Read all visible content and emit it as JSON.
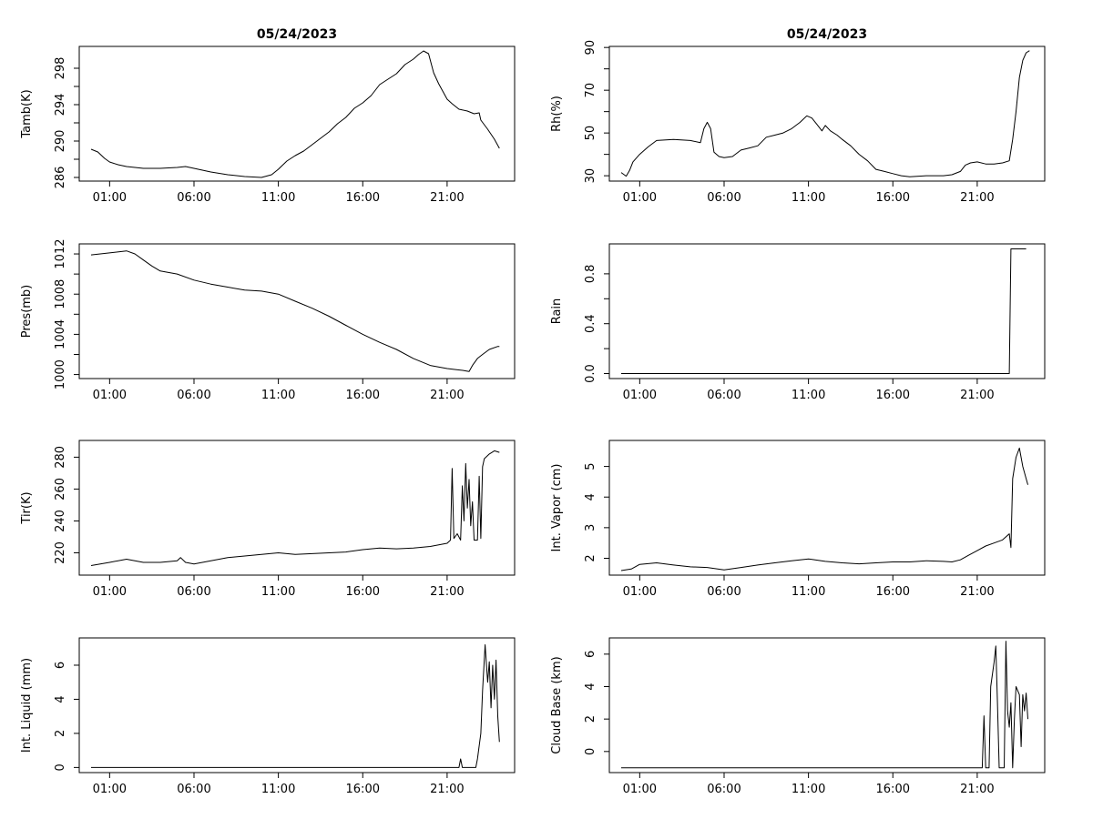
{
  "chart_data": [
    {
      "type": "line",
      "title": "05/24/2023",
      "ylabel": "Tamb(K)",
      "xlim": [
        -0.8,
        25.0
      ],
      "ylim": [
        285.6,
        300.4
      ],
      "xticks": [
        1,
        6,
        11,
        16,
        21
      ],
      "xticklabels": [
        "01:00",
        "06:00",
        "11:00",
        "16:00",
        "21:00"
      ],
      "yticks": [
        286,
        288,
        290,
        292,
        294,
        296,
        298
      ],
      "yticklabels": [
        "286",
        "",
        "290",
        "",
        "294",
        "",
        "298"
      ],
      "points": [
        [
          -0.1,
          289.1
        ],
        [
          0.3,
          288.8
        ],
        [
          0.7,
          288.1
        ],
        [
          1.0,
          287.7
        ],
        [
          1.5,
          287.4
        ],
        [
          2.0,
          287.2
        ],
        [
          3.0,
          287.0
        ],
        [
          4.0,
          287.0
        ],
        [
          5.0,
          287.1
        ],
        [
          5.5,
          287.2
        ],
        [
          6.0,
          287.0
        ],
        [
          7.0,
          286.6
        ],
        [
          8.0,
          286.3
        ],
        [
          9.0,
          286.1
        ],
        [
          10.0,
          286.0
        ],
        [
          10.6,
          286.3
        ],
        [
          11.0,
          286.9
        ],
        [
          11.5,
          287.8
        ],
        [
          12.0,
          288.4
        ],
        [
          12.5,
          288.9
        ],
        [
          13.0,
          289.6
        ],
        [
          13.5,
          290.3
        ],
        [
          14.0,
          291.0
        ],
        [
          14.5,
          291.9
        ],
        [
          15.0,
          292.6
        ],
        [
          15.5,
          293.6
        ],
        [
          16.0,
          294.2
        ],
        [
          16.5,
          295.0
        ],
        [
          17.0,
          296.2
        ],
        [
          17.5,
          296.8
        ],
        [
          18.0,
          297.4
        ],
        [
          18.5,
          298.4
        ],
        [
          19.0,
          299.0
        ],
        [
          19.3,
          299.5
        ],
        [
          19.6,
          299.9
        ],
        [
          19.9,
          299.6
        ],
        [
          20.2,
          297.5
        ],
        [
          20.5,
          296.3
        ],
        [
          21.0,
          294.6
        ],
        [
          21.3,
          294.1
        ],
        [
          21.7,
          293.5
        ],
        [
          22.2,
          293.3
        ],
        [
          22.6,
          293.0
        ],
        [
          22.9,
          293.1
        ],
        [
          23.0,
          292.3
        ],
        [
          23.4,
          291.3
        ],
        [
          23.8,
          290.2
        ],
        [
          24.1,
          289.2
        ]
      ]
    },
    {
      "type": "line",
      "title": "05/24/2023",
      "ylabel": "Rh(%)",
      "xlim": [
        -0.8,
        25.0
      ],
      "ylim": [
        27.5,
        90.5
      ],
      "xticks": [
        1,
        6,
        11,
        16,
        21
      ],
      "xticklabels": [
        "01:00",
        "06:00",
        "11:00",
        "16:00",
        "21:00"
      ],
      "yticks": [
        30,
        40,
        50,
        60,
        70,
        80,
        90
      ],
      "yticklabels": [
        "30",
        "",
        "50",
        "",
        "70",
        "",
        "90"
      ],
      "points": [
        [
          -0.1,
          31.5
        ],
        [
          0.2,
          29.8
        ],
        [
          0.4,
          32.5
        ],
        [
          0.6,
          36.5
        ],
        [
          1.0,
          40.0
        ],
        [
          1.5,
          43.5
        ],
        [
          2.0,
          46.5
        ],
        [
          3.0,
          47.0
        ],
        [
          4.0,
          46.5
        ],
        [
          4.6,
          45.5
        ],
        [
          4.8,
          52.0
        ],
        [
          5.0,
          55.0
        ],
        [
          5.2,
          52.0
        ],
        [
          5.4,
          41.0
        ],
        [
          5.7,
          39.0
        ],
        [
          6.0,
          38.5
        ],
        [
          6.5,
          39.0
        ],
        [
          7.0,
          42.0
        ],
        [
          7.5,
          43.0
        ],
        [
          8.0,
          44.0
        ],
        [
          8.5,
          48.0
        ],
        [
          9.0,
          49.0
        ],
        [
          9.5,
          50.0
        ],
        [
          10.0,
          52.0
        ],
        [
          10.5,
          55.0
        ],
        [
          10.9,
          58.0
        ],
        [
          11.2,
          57.0
        ],
        [
          11.5,
          54.0
        ],
        [
          11.8,
          51.0
        ],
        [
          12.0,
          53.5
        ],
        [
          12.3,
          51.0
        ],
        [
          12.7,
          49.0
        ],
        [
          13.0,
          47.0
        ],
        [
          13.5,
          44.0
        ],
        [
          14.0,
          40.0
        ],
        [
          14.5,
          37.0
        ],
        [
          15.0,
          33.0
        ],
        [
          15.5,
          32.0
        ],
        [
          16.0,
          31.0
        ],
        [
          16.5,
          30.0
        ],
        [
          17.0,
          29.5
        ],
        [
          18.0,
          30.0
        ],
        [
          19.0,
          30.0
        ],
        [
          19.5,
          30.5
        ],
        [
          20.0,
          32.0
        ],
        [
          20.3,
          35.0
        ],
        [
          20.6,
          36.0
        ],
        [
          21.0,
          36.5
        ],
        [
          21.5,
          35.5
        ],
        [
          22.0,
          35.5
        ],
        [
          22.5,
          36.0
        ],
        [
          22.9,
          37.0
        ],
        [
          23.1,
          47.0
        ],
        [
          23.3,
          60.0
        ],
        [
          23.5,
          76.0
        ],
        [
          23.7,
          84.0
        ],
        [
          23.9,
          87.5
        ],
        [
          24.1,
          88.5
        ]
      ]
    },
    {
      "type": "line",
      "title": "",
      "ylabel": "Pres(mb)",
      "xlim": [
        -0.8,
        25.0
      ],
      "ylim": [
        999.6,
        1013.0
      ],
      "xticks": [
        1,
        6,
        11,
        16,
        21
      ],
      "xticklabels": [
        "01:00",
        "06:00",
        "11:00",
        "16:00",
        "21:00"
      ],
      "yticks": [
        1000,
        1002,
        1004,
        1006,
        1008,
        1010,
        1012
      ],
      "yticklabels": [
        "1000",
        "",
        "1004",
        "",
        "1008",
        "",
        "1012"
      ],
      "points": [
        [
          -0.1,
          1011.9
        ],
        [
          1.0,
          1012.1
        ],
        [
          2.0,
          1012.3
        ],
        [
          2.5,
          1012.0
        ],
        [
          3.0,
          1011.4
        ],
        [
          3.5,
          1010.8
        ],
        [
          4.0,
          1010.3
        ],
        [
          5.0,
          1010.0
        ],
        [
          6.0,
          1009.4
        ],
        [
          7.0,
          1009.0
        ],
        [
          8.0,
          1008.7
        ],
        [
          9.0,
          1008.4
        ],
        [
          10.0,
          1008.3
        ],
        [
          11.0,
          1008.0
        ],
        [
          12.0,
          1007.3
        ],
        [
          13.0,
          1006.6
        ],
        [
          14.0,
          1005.8
        ],
        [
          15.0,
          1004.9
        ],
        [
          16.0,
          1004.0
        ],
        [
          17.0,
          1003.2
        ],
        [
          18.0,
          1002.5
        ],
        [
          19.0,
          1001.6
        ],
        [
          20.0,
          1000.9
        ],
        [
          21.0,
          1000.6
        ],
        [
          21.5,
          1000.5
        ],
        [
          22.0,
          1000.4
        ],
        [
          22.3,
          1000.3
        ],
        [
          22.5,
          1000.9
        ],
        [
          22.8,
          1001.6
        ],
        [
          23.1,
          1002.0
        ],
        [
          23.5,
          1002.5
        ],
        [
          24.0,
          1002.8
        ],
        [
          24.1,
          1002.8
        ]
      ]
    },
    {
      "type": "line",
      "title": "",
      "ylabel": "Rain",
      "xlim": [
        -0.8,
        25.0
      ],
      "ylim": [
        -0.04,
        1.04
      ],
      "xticks": [
        1,
        6,
        11,
        16,
        21
      ],
      "xticklabels": [
        "01:00",
        "06:00",
        "11:00",
        "16:00",
        "21:00"
      ],
      "yticks": [
        0.0,
        0.2,
        0.4,
        0.6,
        0.8
      ],
      "yticklabels": [
        "0.0",
        "",
        "0.4",
        "",
        "0.8"
      ],
      "points": [
        [
          -0.1,
          0.0
        ],
        [
          22.9,
          0.0
        ],
        [
          23.0,
          1.0
        ],
        [
          23.9,
          1.0
        ]
      ]
    },
    {
      "type": "line",
      "title": "",
      "ylabel": "Tir(K)",
      "xlim": [
        -0.8,
        25.0
      ],
      "ylim": [
        206.0,
        290.5
      ],
      "xticks": [
        1,
        6,
        11,
        16,
        21
      ],
      "xticklabels": [
        "01:00",
        "06:00",
        "11:00",
        "16:00",
        "21:00"
      ],
      "yticks": [
        220,
        240,
        260,
        280
      ],
      "yticklabels": [
        "220",
        "240",
        "260",
        "280"
      ],
      "points": [
        [
          -0.1,
          212.0
        ],
        [
          1.0,
          214.0
        ],
        [
          2.0,
          216.0
        ],
        [
          3.0,
          214.0
        ],
        [
          4.0,
          214.0
        ],
        [
          5.0,
          215.0
        ],
        [
          5.2,
          217.0
        ],
        [
          5.5,
          214.0
        ],
        [
          6.0,
          213.0
        ],
        [
          7.0,
          215.0
        ],
        [
          8.0,
          217.0
        ],
        [
          9.0,
          218.0
        ],
        [
          10.0,
          219.0
        ],
        [
          11.0,
          220.0
        ],
        [
          12.0,
          219.0
        ],
        [
          13.0,
          219.5
        ],
        [
          14.0,
          220.0
        ],
        [
          15.0,
          220.5
        ],
        [
          16.0,
          222.0
        ],
        [
          17.0,
          223.0
        ],
        [
          18.0,
          222.5
        ],
        [
          19.0,
          223.0
        ],
        [
          20.0,
          224.0
        ],
        [
          21.0,
          226.0
        ],
        [
          21.2,
          228.0
        ],
        [
          21.3,
          273.0
        ],
        [
          21.4,
          229.0
        ],
        [
          21.6,
          232.0
        ],
        [
          21.8,
          228.0
        ],
        [
          21.9,
          262.0
        ],
        [
          22.0,
          240.0
        ],
        [
          22.1,
          276.0
        ],
        [
          22.2,
          248.0
        ],
        [
          22.3,
          266.0
        ],
        [
          22.4,
          237.0
        ],
        [
          22.5,
          252.0
        ],
        [
          22.6,
          228.0
        ],
        [
          22.8,
          228.0
        ],
        [
          22.9,
          268.0
        ],
        [
          23.0,
          229.0
        ],
        [
          23.1,
          274.0
        ],
        [
          23.2,
          279.0
        ],
        [
          23.5,
          282.0
        ],
        [
          23.8,
          284.0
        ],
        [
          24.1,
          283.0
        ]
      ]
    },
    {
      "type": "line",
      "title": "",
      "ylabel": "Int. Vapor (cm)",
      "xlim": [
        -0.8,
        25.0
      ],
      "ylim": [
        1.45,
        5.85
      ],
      "xticks": [
        1,
        6,
        11,
        16,
        21
      ],
      "xticklabels": [
        "01:00",
        "06:00",
        "11:00",
        "16:00",
        "21:00"
      ],
      "yticks": [
        2,
        3,
        4,
        5
      ],
      "yticklabels": [
        "2",
        "3",
        "4",
        "5"
      ],
      "points": [
        [
          -0.1,
          1.6
        ],
        [
          0.5,
          1.65
        ],
        [
          1.0,
          1.8
        ],
        [
          2.0,
          1.85
        ],
        [
          3.0,
          1.78
        ],
        [
          4.0,
          1.72
        ],
        [
          5.0,
          1.7
        ],
        [
          6.0,
          1.62
        ],
        [
          7.0,
          1.7
        ],
        [
          8.0,
          1.78
        ],
        [
          9.0,
          1.85
        ],
        [
          10.0,
          1.92
        ],
        [
          11.0,
          1.98
        ],
        [
          12.0,
          1.9
        ],
        [
          13.0,
          1.85
        ],
        [
          14.0,
          1.82
        ],
        [
          15.0,
          1.85
        ],
        [
          16.0,
          1.88
        ],
        [
          17.0,
          1.88
        ],
        [
          18.0,
          1.92
        ],
        [
          19.0,
          1.9
        ],
        [
          19.5,
          1.88
        ],
        [
          20.0,
          1.95
        ],
        [
          20.5,
          2.1
        ],
        [
          21.0,
          2.25
        ],
        [
          21.5,
          2.4
        ],
        [
          22.0,
          2.5
        ],
        [
          22.5,
          2.6
        ],
        [
          22.9,
          2.8
        ],
        [
          23.0,
          2.35
        ],
        [
          23.1,
          4.6
        ],
        [
          23.3,
          5.3
        ],
        [
          23.5,
          5.6
        ],
        [
          23.7,
          5.0
        ],
        [
          23.9,
          4.6
        ],
        [
          24.0,
          4.4
        ]
      ]
    },
    {
      "type": "line",
      "title": "",
      "ylabel": "Int. Liquid (mm)",
      "xlim": [
        -0.8,
        25.0
      ],
      "ylim": [
        -0.3,
        7.6
      ],
      "xticks": [
        1,
        6,
        11,
        16,
        21
      ],
      "xticklabels": [
        "01:00",
        "06:00",
        "11:00",
        "16:00",
        "21:00"
      ],
      "yticks": [
        0,
        2,
        4,
        6
      ],
      "yticklabels": [
        "0",
        "2",
        "4",
        "6"
      ],
      "points": [
        [
          -0.1,
          0.0
        ],
        [
          21.7,
          0.0
        ],
        [
          21.8,
          0.5
        ],
        [
          21.9,
          0.0
        ],
        [
          22.7,
          0.0
        ],
        [
          22.8,
          0.5
        ],
        [
          23.0,
          2.0
        ],
        [
          23.1,
          4.5
        ],
        [
          23.25,
          7.2
        ],
        [
          23.4,
          5.0
        ],
        [
          23.5,
          6.2
        ],
        [
          23.6,
          3.5
        ],
        [
          23.7,
          6.0
        ],
        [
          23.8,
          4.0
        ],
        [
          23.9,
          6.3
        ],
        [
          24.0,
          3.0
        ],
        [
          24.1,
          1.5
        ]
      ]
    },
    {
      "type": "line",
      "title": "",
      "ylabel": "Cloud Base (km)",
      "xlim": [
        -0.8,
        25.0
      ],
      "ylim": [
        -1.3,
        7.0
      ],
      "xticks": [
        1,
        6,
        11,
        16,
        21
      ],
      "xticklabels": [
        "01:00",
        "06:00",
        "11:00",
        "16:00",
        "21:00"
      ],
      "yticks": [
        0,
        2,
        4,
        6
      ],
      "yticklabels": [
        "0",
        "2",
        "4",
        "6"
      ],
      "points": [
        [
          -0.1,
          -1.0
        ],
        [
          21.3,
          -1.0
        ],
        [
          21.4,
          2.2
        ],
        [
          21.5,
          -1.0
        ],
        [
          21.7,
          -1.0
        ],
        [
          21.8,
          4.0
        ],
        [
          22.0,
          5.5
        ],
        [
          22.1,
          6.5
        ],
        [
          22.2,
          3.0
        ],
        [
          22.3,
          -1.0
        ],
        [
          22.6,
          -1.0
        ],
        [
          22.7,
          6.8
        ],
        [
          22.8,
          2.5
        ],
        [
          22.9,
          1.5
        ],
        [
          23.0,
          3.0
        ],
        [
          23.1,
          -1.0
        ],
        [
          23.2,
          2.0
        ],
        [
          23.3,
          4.0
        ],
        [
          23.5,
          3.5
        ],
        [
          23.6,
          0.3
        ],
        [
          23.7,
          3.5
        ],
        [
          23.8,
          2.5
        ],
        [
          23.9,
          3.6
        ],
        [
          24.0,
          2.0
        ]
      ]
    }
  ]
}
